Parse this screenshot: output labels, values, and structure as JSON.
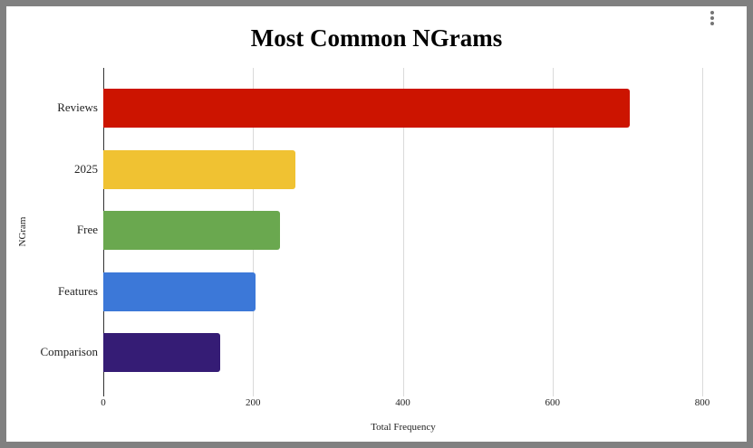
{
  "chart_data": {
    "type": "bar",
    "orientation": "horizontal",
    "title": "Most Common NGrams",
    "xlabel": "Total Frequency",
    "ylabel": "NGram",
    "categories": [
      "Reviews",
      "2025",
      "Free",
      "Features",
      "Comparison"
    ],
    "values": [
      703,
      257,
      236,
      203,
      156
    ],
    "colors": [
      "#cc1400",
      "#f0c232",
      "#6aa84f",
      "#3c78d8",
      "#351c75"
    ],
    "xlim": [
      0,
      800
    ],
    "xticks": [
      "0",
      "200",
      "400",
      "600",
      "800"
    ],
    "grid": true,
    "legend": "none"
  },
  "menu": {
    "icon": "more-vert-icon"
  }
}
